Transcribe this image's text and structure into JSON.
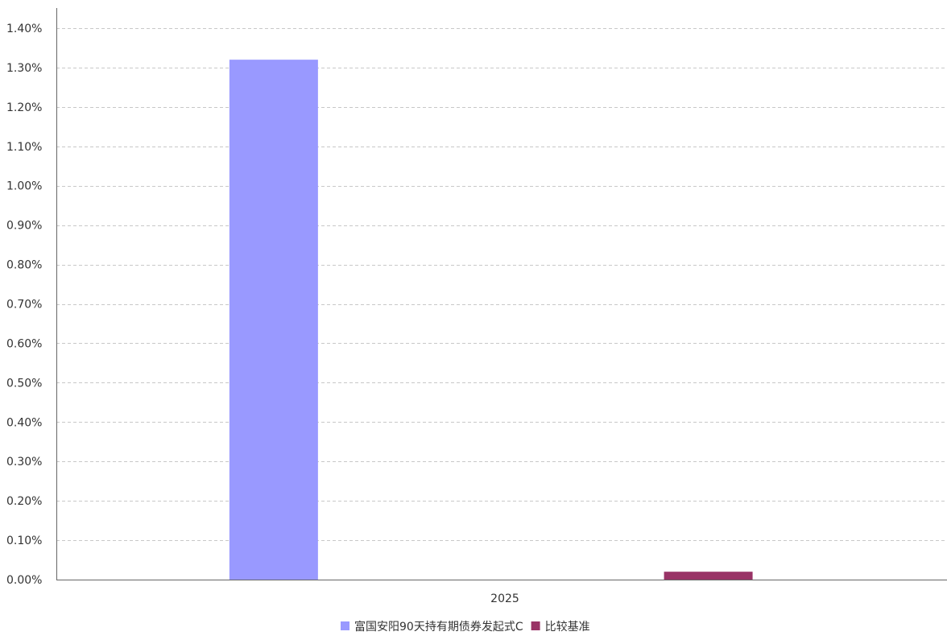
{
  "chart_data": {
    "type": "bar",
    "categories": [
      "2025"
    ],
    "series": [
      {
        "name": "富国安阳90天持有期债券发起式C",
        "values": [
          1.32
        ],
        "color": "#9999ff"
      },
      {
        "name": "比较基准",
        "values": [
          0.02
        ],
        "color": "#993366"
      }
    ],
    "ylim": [
      0,
      1.4
    ],
    "y_ticks": [
      0,
      0.1,
      0.2,
      0.3,
      0.4,
      0.5,
      0.6,
      0.7,
      0.8,
      0.9,
      1.0,
      1.1,
      1.2,
      1.3,
      1.4
    ],
    "y_tick_labels": [
      "0.00%",
      "0.10%",
      "0.20%",
      "0.30%",
      "0.40%",
      "0.50%",
      "0.60%",
      "0.70%",
      "0.80%",
      "0.90%",
      "1.00%",
      "1.10%",
      "1.20%",
      "1.30%",
      "1.40%"
    ],
    "y_unit": "%",
    "grid": true,
    "legend_position": "bottom"
  }
}
